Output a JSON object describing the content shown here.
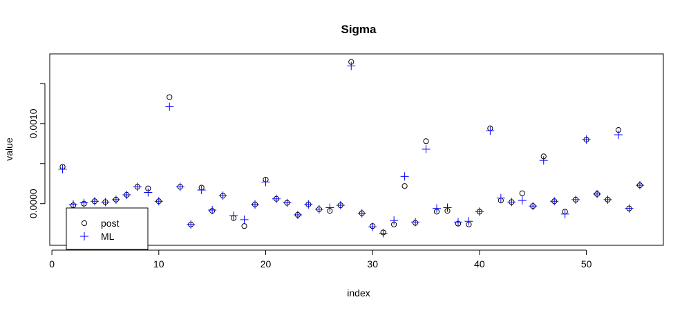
{
  "chart_data": {
    "type": "scatter",
    "title": "Sigma",
    "xlabel": "index",
    "ylabel": "value",
    "xlim": [
      -0.2,
      57.2
    ],
    "ylim": [
      -0.00052,
      0.00187
    ],
    "x_ticks": [
      0,
      10,
      20,
      30,
      40,
      50
    ],
    "x_tick_labels": [
      "0",
      "10",
      "20",
      "30",
      "40",
      "50"
    ],
    "y_ticks": [
      0.0,
      0.0005,
      0.001,
      0.0015
    ],
    "y_tick_labels": [
      "0.0000",
      "",
      "0.0010",
      ""
    ],
    "grid": false,
    "legend_position": "bottom-left",
    "series": [
      {
        "name": "post",
        "marker": "open-circle",
        "color": "#000000",
        "x": [
          1,
          2,
          3,
          4,
          5,
          6,
          7,
          8,
          9,
          10,
          11,
          12,
          13,
          14,
          15,
          16,
          17,
          18,
          19,
          20,
          21,
          22,
          23,
          24,
          25,
          26,
          27,
          28,
          29,
          30,
          31,
          32,
          33,
          34,
          35,
          36,
          37,
          38,
          39,
          40,
          41,
          42,
          43,
          44,
          45,
          46,
          47,
          48,
          49,
          50,
          51,
          52,
          53,
          54,
          55
        ],
        "y": [
          0.00046,
          -2e-05,
          0.0,
          3e-05,
          2e-05,
          5e-05,
          0.00011,
          0.00021,
          0.00019,
          3e-05,
          0.00133,
          0.00021,
          -0.00026,
          0.0002,
          -9e-05,
          0.0001,
          -0.00018,
          -0.00028,
          -1e-05,
          0.0003,
          6e-05,
          1e-05,
          -0.00014,
          -1e-05,
          -7e-05,
          -9e-05,
          -2e-05,
          0.00177,
          -0.00012,
          -0.00028,
          -0.00036,
          -0.00026,
          0.00022,
          -0.00024,
          0.00078,
          -0.0001,
          -9e-05,
          -0.00025,
          -0.00026,
          -0.0001,
          0.00094,
          4e-05,
          2e-05,
          0.00013,
          -3e-05,
          0.00059,
          3e-05,
          -0.0001,
          5e-05,
          0.0008,
          0.00012,
          5e-05,
          0.00092,
          -6e-05,
          0.00023
        ]
      },
      {
        "name": "ML",
        "marker": "plus",
        "color": "#0000ff",
        "x": [
          1,
          2,
          3,
          4,
          5,
          6,
          7,
          8,
          9,
          10,
          11,
          12,
          13,
          14,
          15,
          16,
          17,
          18,
          19,
          20,
          21,
          22,
          23,
          24,
          25,
          26,
          27,
          28,
          29,
          30,
          31,
          32,
          33,
          34,
          35,
          36,
          37,
          38,
          39,
          40,
          41,
          42,
          43,
          44,
          45,
          46,
          47,
          48,
          49,
          50,
          51,
          52,
          53,
          54,
          55
        ],
        "y": [
          0.00043,
          -1e-05,
          1e-05,
          3e-05,
          2e-05,
          5e-05,
          0.00011,
          0.00021,
          0.00014,
          3e-05,
          0.00121,
          0.00021,
          -0.00026,
          0.00017,
          -8e-05,
          0.0001,
          -0.00015,
          -0.0002,
          -1e-05,
          0.00027,
          6e-05,
          1e-05,
          -0.00014,
          -1e-05,
          -7e-05,
          -5e-05,
          -2e-05,
          0.00172,
          -0.00012,
          -0.00029,
          -0.00037,
          -0.00021,
          0.00034,
          -0.00023,
          0.00068,
          -6e-05,
          -5e-05,
          -0.00023,
          -0.00022,
          -0.0001,
          0.00091,
          7e-05,
          2e-05,
          4e-05,
          -3e-05,
          0.00054,
          3e-05,
          -0.00013,
          5e-05,
          0.0008,
          0.00012,
          5e-05,
          0.00086,
          -6e-05,
          0.00023
        ]
      }
    ],
    "legend": [
      {
        "label": "post",
        "marker": "open-circle",
        "color": "#000000"
      },
      {
        "label": "ML",
        "marker": "plus",
        "color": "#0000ff"
      }
    ]
  }
}
